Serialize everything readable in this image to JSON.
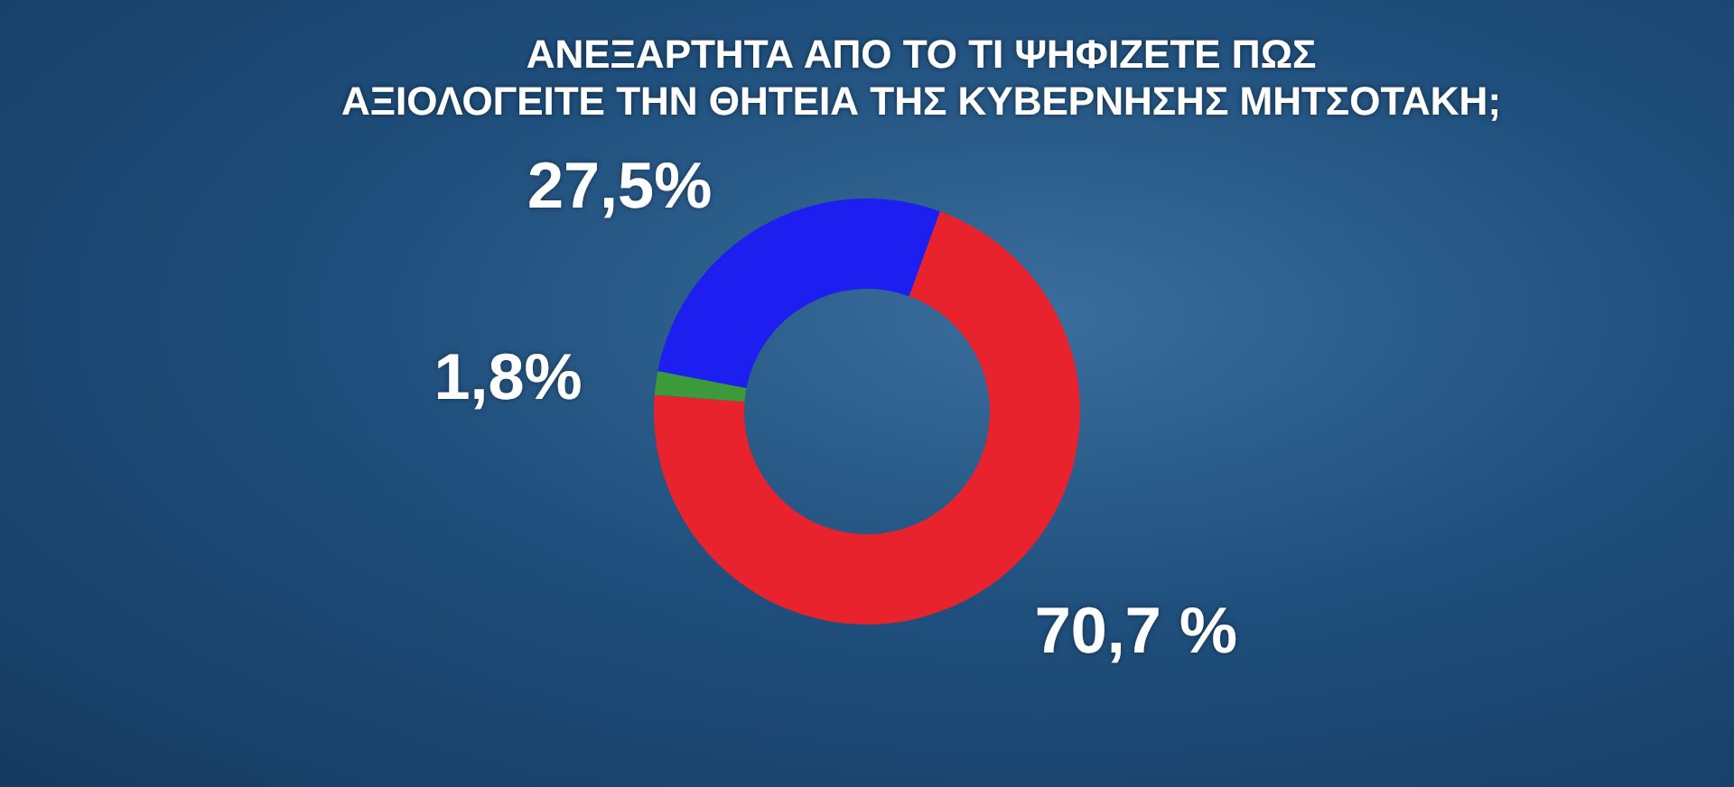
{
  "chart_data": {
    "type": "donut",
    "title": "ΑΝΕΞΑΡΤΗΤΑ ΑΠΟ ΤΟ ΤΙ ΨΗΦΙΖΕΤΕ ΠΩΣ\nΑΞΙΟΛΟΓΕΙΤΕ ΤΗΝ ΘΗΤΕΙΑ ΤΗΣ ΚΥΒΕΡΝΗΣΗΣ ΜΗΤΣΟΤΑΚΗ;",
    "categories": [
      null,
      null,
      null
    ],
    "values": [
      70.7,
      1.8,
      27.5
    ],
    "colors": [
      "#e8232e",
      "#3d9a3a",
      "#1c1ff0"
    ],
    "value_labels": [
      "70,7 %",
      "1,8%",
      "27,5%"
    ]
  }
}
